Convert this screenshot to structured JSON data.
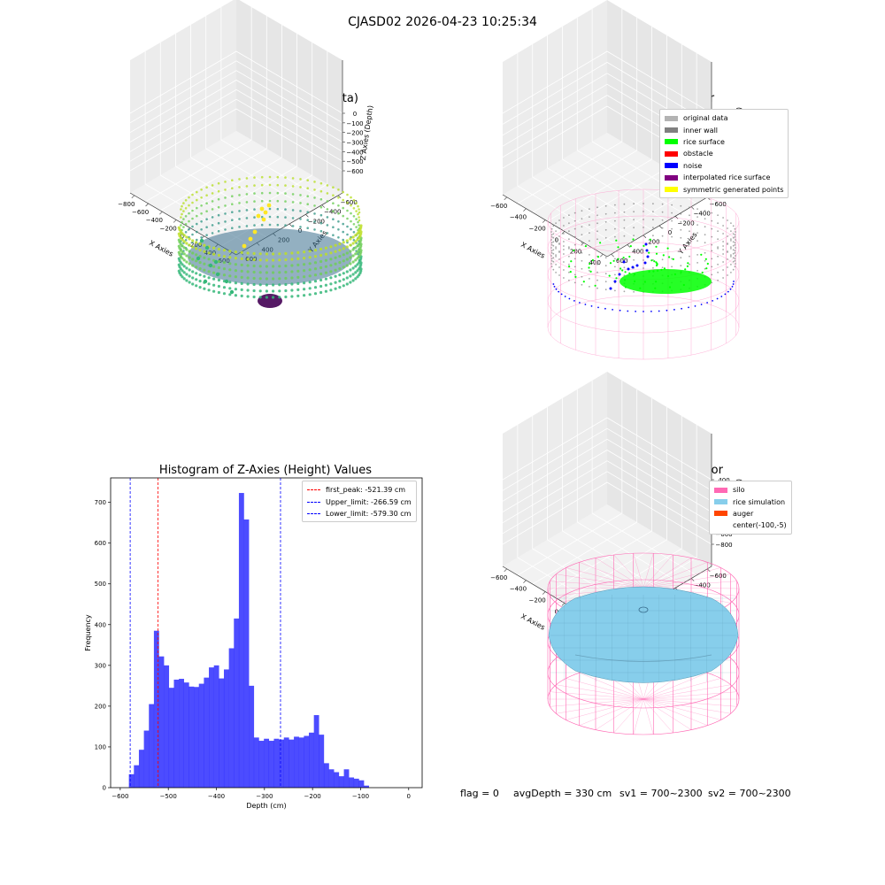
{
  "figure_title": "CJASD02 2026-04-23 10:25:34",
  "footer": {
    "flag": "flag = 0",
    "avg_depth": "avgDepth = 330 cm",
    "sv1": "sv1 = 700~2300",
    "sv2": "sv2 = 700~2300"
  },
  "chart_data": [
    {
      "type": "scatter",
      "title": "3D Plot of Silo Interior(row data)",
      "xlabel": "X Axies",
      "ylabel": "Y Axies",
      "zlabel": "Z Axies (Depth)",
      "x_ticks": [
        "−800",
        "−600",
        "−400",
        "−200",
        "0",
        "200",
        "400",
        "600"
      ],
      "y_ticks": [
        "−600",
        "−400",
        "−200",
        "0",
        "200",
        "400",
        "600"
      ],
      "z_ticks": [
        "0",
        "−100",
        "−200",
        "−300",
        "−400",
        "−500",
        "−600"
      ],
      "colormap": [
        "#440154",
        "#31688e",
        "#35b779",
        "#fde725"
      ]
    },
    {
      "type": "scatter",
      "title": "3D classify of Silo Interior",
      "xlabel": "X Axies",
      "ylabel": "Y Axies",
      "zlabel": "Z Axies (Depth)",
      "x_ticks": [
        "−600",
        "−400",
        "−200",
        "0",
        "200",
        "400"
      ],
      "y_ticks": [
        "−600",
        "−400",
        "−200",
        "0",
        "200",
        "400",
        "600"
      ],
      "z_ticks": [
        "200",
        "0",
        "−200",
        "−400",
        "−600",
        "−800"
      ],
      "legend": [
        {
          "label": "original data",
          "color": "#b3b3b3"
        },
        {
          "label": "inner wall",
          "color": "#808080"
        },
        {
          "label": "rice surface",
          "color": "#00ff00"
        },
        {
          "label": "obstacle",
          "color": "#ff0000"
        },
        {
          "label": "noise",
          "color": "#0000ff"
        },
        {
          "label": "interpolated rice surface",
          "color": "#800080"
        },
        {
          "label": "symmetric generated points",
          "color": "#ffff00"
        }
      ]
    },
    {
      "type": "bar",
      "title": "Histogram of Z-Axies (Height) Values",
      "xlabel": "Depth (cm)",
      "ylabel": "Frequency",
      "xlim": [
        -620,
        28
      ],
      "ylim": [
        0,
        760
      ],
      "bin_start": -582,
      "bin_width": 10.4,
      "values": [
        33,
        55,
        93,
        140,
        205,
        385,
        322,
        300,
        245,
        265,
        267,
        258,
        248,
        247,
        255,
        270,
        295,
        300,
        268,
        290,
        342,
        415,
        723,
        658,
        250,
        123,
        115,
        120,
        115,
        120,
        118,
        123,
        118,
        125,
        123,
        127,
        135,
        178,
        130,
        60,
        45,
        38,
        28,
        45,
        25,
        22,
        18,
        5
      ],
      "x_ticks": [
        -600,
        -500,
        -400,
        -300,
        -200,
        -100,
        0
      ],
      "x_tick_labels": [
        "−600",
        "−500",
        "−400",
        "−300",
        "−200",
        "−100",
        "0"
      ],
      "y_ticks": [
        0,
        100,
        200,
        300,
        400,
        500,
        600,
        700
      ],
      "bar_color": "#0000ff",
      "vlines": [
        {
          "value": -521.39,
          "color": "#ff0000",
          "label": "first_peak: -521.39 cm"
        },
        {
          "value": -266.59,
          "color": "#0000ff",
          "label": "Upper_limit: -266.59 cm"
        },
        {
          "value": -579.3,
          "color": "#0000ff",
          "label": "Lower_limit: -579.30 cm"
        }
      ],
      "legend_position": "top-right"
    },
    {
      "type": "surface",
      "title": "3D simulation of Silo Interior",
      "xlabel": "X Axies",
      "ylabel": "Y Axies",
      "zlabel": "Z Axies (Depth)",
      "x_ticks": [
        "−600",
        "−400",
        "−200",
        "0",
        "200",
        "400"
      ],
      "y_ticks": [
        "−600",
        "−400",
        "−200",
        "0",
        "200",
        "400",
        "600"
      ],
      "z_ticks": [
        "400",
        "200",
        "0",
        "−200",
        "−400",
        "−600",
        "−800"
      ],
      "legend": [
        {
          "label": "silo",
          "color": "#ff69b4"
        },
        {
          "label": "rice simulation",
          "color": "#87ceeb"
        },
        {
          "label": "auger",
          "color": "#ff4500"
        },
        {
          "label": "center(-100,-5)",
          "color": ""
        }
      ]
    }
  ]
}
